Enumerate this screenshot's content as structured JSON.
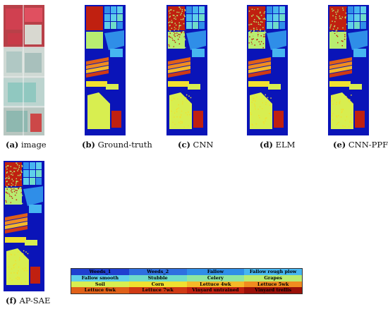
{
  "panels": [
    {
      "id": "a",
      "letter": "(a)",
      "caption": "image"
    },
    {
      "id": "b",
      "letter": "(b)",
      "caption": "Ground-truth"
    },
    {
      "id": "c",
      "letter": "(c)",
      "caption": "CNN"
    },
    {
      "id": "d",
      "letter": "(d)",
      "caption": "ELM"
    },
    {
      "id": "e",
      "letter": "(e)",
      "caption": "CNN-PPF"
    },
    {
      "id": "f",
      "letter": "(f)",
      "caption": "AP-SAE"
    }
  ],
  "legend": [
    {
      "label": "Weeds_1",
      "color": "#1f3fd0"
    },
    {
      "label": "Weeds_2",
      "color": "#2e6fe0"
    },
    {
      "label": "Fallow",
      "color": "#2f8ee8"
    },
    {
      "label": "Fallow rough plow",
      "color": "#46b5f0"
    },
    {
      "label": "Fallow smooth",
      "color": "#5fcfea"
    },
    {
      "label": "Stubble",
      "color": "#6fdcc8"
    },
    {
      "label": "Celery",
      "color": "#8fe6a0"
    },
    {
      "label": "Grapes",
      "color": "#b8ec70"
    },
    {
      "label": "Soil",
      "color": "#d8ee50"
    },
    {
      "label": "Corn",
      "color": "#f0e030"
    },
    {
      "label": "Lettuce 4wk",
      "color": "#f5b828"
    },
    {
      "label": "Lettuce 5wk",
      "color": "#f08c20"
    },
    {
      "label": "Lettuce 6wk",
      "color": "#e06018"
    },
    {
      "label": "Lettuce 7wk",
      "color": "#d03a14"
    },
    {
      "label": "Vinyard untrained",
      "color": "#c02010"
    },
    {
      "label": "Vinyard trellis",
      "color": "#9a1008"
    }
  ]
}
